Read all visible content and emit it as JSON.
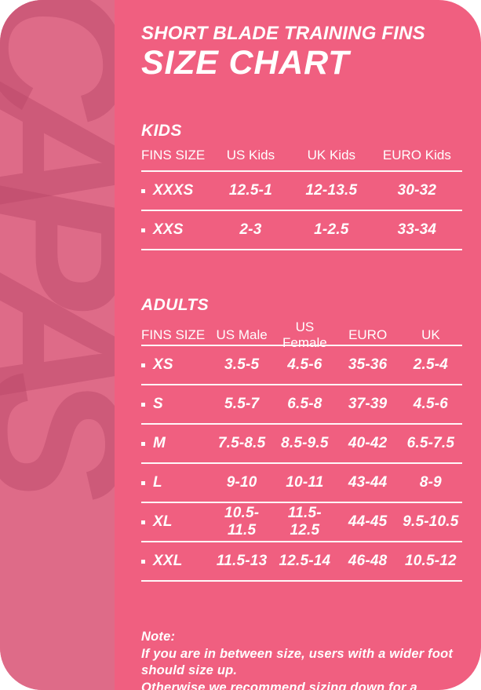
{
  "colors": {
    "card_background": "#F05F80",
    "watermark_strip_background": "#DE6B88",
    "watermark_letter": "#C05070",
    "text": "#FFFFFF",
    "divider": "#FFFFFF",
    "page_background": "#FFFFFF"
  },
  "watermark": {
    "text": "CAPAS",
    "letters": [
      "C",
      "A",
      "P",
      "A",
      "S"
    ]
  },
  "header": {
    "subtitle": "SHORT BLADE TRAINING FINS",
    "title": "SIZE CHART"
  },
  "kids": {
    "heading": "KIDS",
    "columns": [
      "FINS SIZE",
      "US Kids",
      "UK Kids",
      "EURO Kids"
    ],
    "rows": [
      {
        "size": "XXXS",
        "values": [
          "12.5-1",
          "12-13.5",
          "30-32"
        ]
      },
      {
        "size": "XXS",
        "values": [
          "2-3",
          "1-2.5",
          "33-34"
        ]
      }
    ]
  },
  "adults": {
    "heading": "ADULTS",
    "columns": [
      "FINS SIZE",
      "US Male",
      "US Female",
      "EURO",
      "UK"
    ],
    "rows": [
      {
        "size": "XS",
        "values": [
          "3.5-5",
          "4.5-6",
          "35-36",
          "2.5-4"
        ]
      },
      {
        "size": "S",
        "values": [
          "5.5-7",
          "6.5-8",
          "37-39",
          "4.5-6"
        ]
      },
      {
        "size": "M",
        "values": [
          "7.5-8.5",
          "8.5-9.5",
          "40-42",
          "6.5-7.5"
        ]
      },
      {
        "size": "L",
        "values": [
          "9-10",
          "10-11",
          "43-44",
          "8-9"
        ]
      },
      {
        "size": "XL",
        "values": [
          "10.5-11.5",
          "11.5-12.5",
          "44-45",
          "9.5-10.5"
        ]
      },
      {
        "size": "XXL",
        "values": [
          "11.5-13",
          "12.5-14",
          "46-48",
          "10.5-12"
        ]
      }
    ]
  },
  "note": {
    "label": "Note:",
    "lines": [
      "If you are in between size, users with a wider foot",
      "should size up.",
      "Otherwise we recommend sizing down for a tighter fit."
    ]
  },
  "chart_data": [
    {
      "type": "table",
      "title": "KIDS",
      "columns": [
        "FINS SIZE",
        "US Kids",
        "UK Kids",
        "EURO Kids"
      ],
      "rows": [
        [
          "XXXS",
          "12.5-1",
          "12-13.5",
          "30-32"
        ],
        [
          "XXS",
          "2-3",
          "1-2.5",
          "33-34"
        ]
      ]
    },
    {
      "type": "table",
      "title": "ADULTS",
      "columns": [
        "FINS SIZE",
        "US Male",
        "US Female",
        "EURO",
        "UK"
      ],
      "rows": [
        [
          "XS",
          "3.5-5",
          "4.5-6",
          "35-36",
          "2.5-4"
        ],
        [
          "S",
          "5.5-7",
          "6.5-8",
          "37-39",
          "4.5-6"
        ],
        [
          "M",
          "7.5-8.5",
          "8.5-9.5",
          "40-42",
          "6.5-7.5"
        ],
        [
          "L",
          "9-10",
          "10-11",
          "43-44",
          "8-9"
        ],
        [
          "XL",
          "10.5-11.5",
          "11.5-12.5",
          "44-45",
          "9.5-10.5"
        ],
        [
          "XXL",
          "11.5-13",
          "12.5-14",
          "46-48",
          "10.5-12"
        ]
      ]
    }
  ]
}
